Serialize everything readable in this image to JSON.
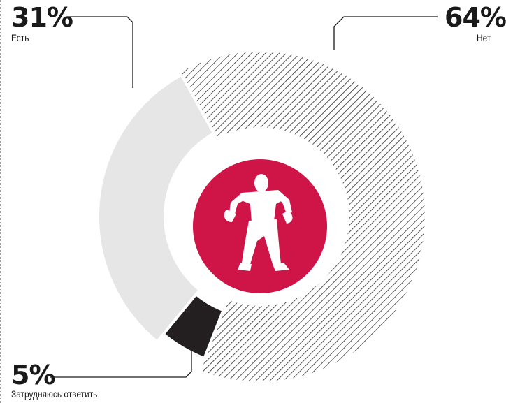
{
  "chart_data": {
    "type": "pie",
    "donut": true,
    "categories": [
      "Есть",
      "Нет",
      "Затрудняюсь ответить"
    ],
    "values": [
      31,
      64,
      5
    ],
    "value_labels": [
      "31%",
      "64%",
      "5%"
    ],
    "colors": {
      "Есть": "#e6e6e7",
      "Нет": "#2a2a2a",
      "Затрудняюсь ответить": "#231f20",
      "center_circle": "#cf1547",
      "leader_lines": "#1a1a1a"
    },
    "slice_styles": [
      "solid",
      "hatched",
      "solid"
    ],
    "center_icon": "person-empty-pockets-icon"
  }
}
